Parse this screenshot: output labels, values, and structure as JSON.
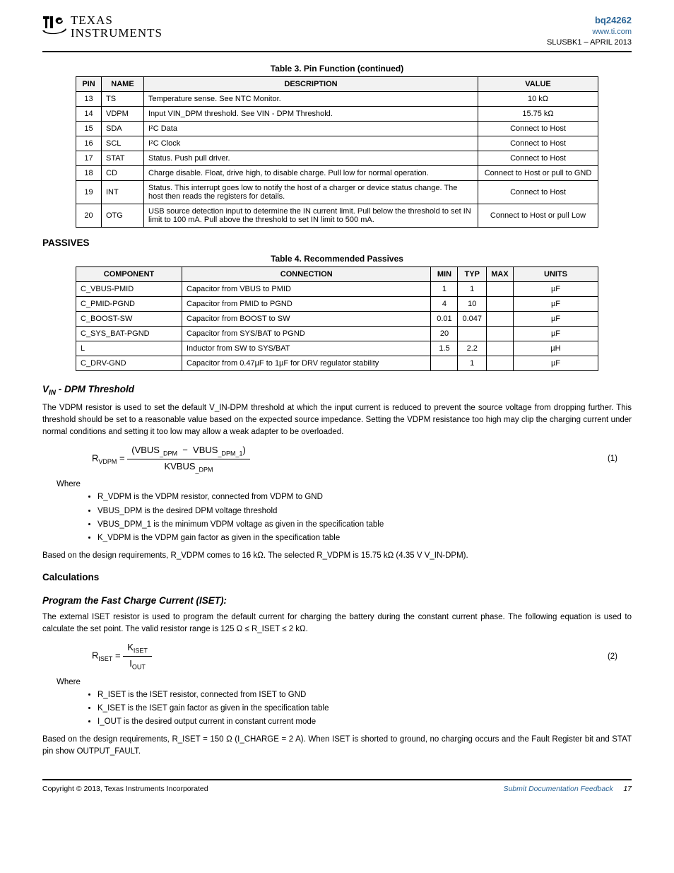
{
  "header": {
    "logo_top": "TEXAS",
    "logo_bottom": "INSTRUMENTS",
    "part_number": "bq24262",
    "url": "www.ti.com",
    "doc_rev": "SLUSBK1 – APRIL 2013"
  },
  "pin_table": {
    "caption": "Table 3. Pin Function (continued)",
    "headers": [
      "PIN",
      "NAME",
      "DESCRIPTION",
      "VALUE"
    ],
    "rows": [
      {
        "pin": "13",
        "name": "TS",
        "desc": "Temperature sense. See NTC Monitor.",
        "value": "10 kΩ"
      },
      {
        "pin": "14",
        "name": "VDPM",
        "desc": "Input VIN_DPM threshold. See VIN - DPM Threshold.",
        "value": "15.75 kΩ"
      },
      {
        "pin": "15",
        "name": "SDA",
        "desc": "I²C Data",
        "value": "Connect to Host"
      },
      {
        "pin": "16",
        "name": "SCL",
        "desc": "I²C Clock",
        "value": "Connect to Host"
      },
      {
        "pin": "17",
        "name": "STAT",
        "desc": "Status. Push pull driver.",
        "value": "Connect to Host"
      },
      {
        "pin": "18",
        "name": "CD",
        "desc": "Charge disable. Float, drive high, to disable charge. Pull low for normal operation.",
        "value": "Connect to Host or pull to GND"
      },
      {
        "pin": "19",
        "name": "INT",
        "desc": "Status. This interrupt goes low to notify the host of a charger or device status change. The host then reads the registers for details.",
        "value": "Connect to Host"
      },
      {
        "pin": "20",
        "name": "OTG",
        "desc": "USB source detection input to determine the IN current limit. Pull below the threshold to set IN limit to 100 mA. Pull above the threshold to set IN limit to 500 mA.",
        "value": "Connect to Host or pull Low"
      }
    ]
  },
  "recc_table": {
    "caption": "Table 4. Recommended Passives",
    "headers": [
      "COMPONENT",
      "CONNECTION",
      "MIN",
      "TYP",
      "MAX",
      "UNITS"
    ],
    "rows": [
      [
        "C_VBUS-PMID",
        "Capacitor from VBUS to PMID",
        "1",
        "1",
        "",
        "µF"
      ],
      [
        "C_PMID-PGND",
        "Capacitor from PMID to PGND",
        "4",
        "10",
        "",
        "µF"
      ],
      [
        "C_BOOST-SW",
        "Capacitor from BOOST to SW",
        "0.01",
        "0.047",
        "",
        "µF"
      ],
      [
        "C_SYS_BAT-PGND",
        "Capacitor from SYS/BAT to PGND",
        "20",
        "",
        "",
        "µF"
      ],
      [
        "L",
        "Inductor from SW to SYS/BAT",
        "1.5",
        "2.2",
        "",
        "µH"
      ],
      [
        "C_DRV-GND",
        "Capacitor from 0.47µF to 1µF for DRV regulator stability",
        "",
        "1",
        "",
        "µF"
      ]
    ]
  },
  "sections": {
    "s1_title": "V_IN - DPM Threshold",
    "s1_text": "The VDPM resistor is used to set the default V_IN-DPM threshold at which the input current is reduced to prevent the source voltage from dropping further. This threshold should be set to a reasonable value based on the expected source impedance. Setting the VDPM resistance too high may clip the charging current under normal conditions and setting it too low may allow a weak adapter to be overloaded.",
    "eq1_num": "(1)",
    "s1_where": "Where",
    "s1_bullets": [
      "R_VDPM is the VDPM resistor, connected from VDPM to GND",
      "VBUS_DPM is the desired DPM voltage threshold",
      "VBUS_DPM_1 is the minimum VDPM voltage as given in the specification table",
      "K_VDPM is the VDPM gain factor as given in the specification table"
    ],
    "s1_after": "Based on the design requirements, R_VDPM comes to 16 kΩ. The selected R_VDPM is 15.75 kΩ (4.35 V V_IN-DPM).",
    "s2_title": "Calculations",
    "s3_title": "Program the Fast Charge Current (ISET):",
    "s3_text": "The external ISET resistor is used to program the default current for charging the battery during the constant current phase. The following equation is used to calculate the set point. The valid resistor range is 125 Ω ≤ R_ISET ≤ 2 kΩ.",
    "eq2_num": "(2)",
    "s3_where": "Where",
    "s3_bullets": [
      "R_ISET is the ISET resistor, connected from ISET to GND",
      "K_ISET is the ISET gain factor as given in the specification table",
      "I_OUT is the desired output current in constant current mode"
    ],
    "s3_after": "Based on the design requirements, R_ISET = 150 Ω (I_CHARGE = 2 A). When ISET is shorted to ground, no charging occurs and the Fault Register bit and STAT pin show OUTPUT_FAULT."
  },
  "footer": {
    "left": "Copyright © 2013, Texas Instruments Incorporated",
    "right_label": "Submit Documentation Feedback",
    "page_num": "17"
  }
}
